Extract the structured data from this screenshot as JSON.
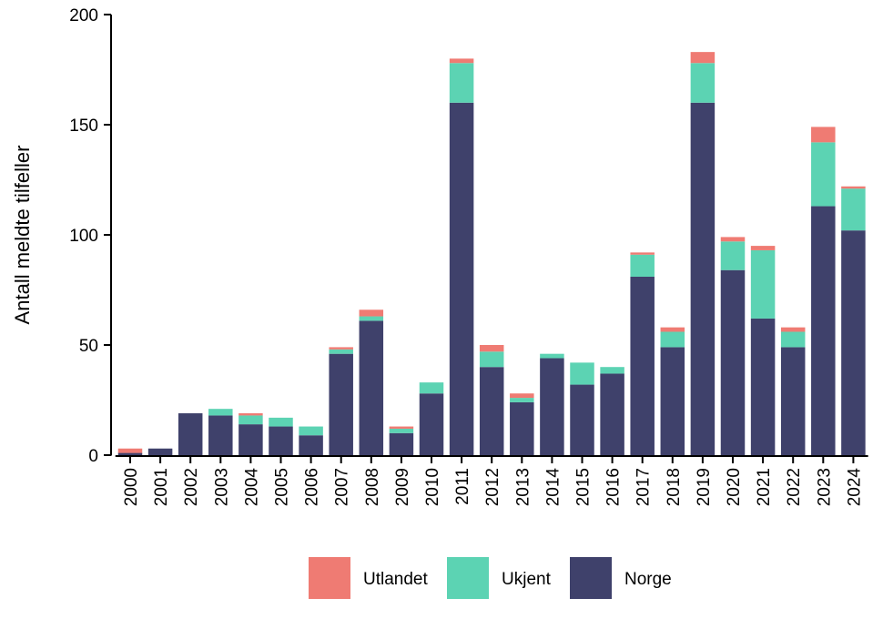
{
  "chart_data": {
    "type": "bar",
    "stacked": true,
    "title": "",
    "xlabel": "",
    "ylabel": "Antall meldte tilfeller",
    "ylim": [
      0,
      200
    ],
    "yticks": [
      0,
      50,
      100,
      150,
      200
    ],
    "categories": [
      "2000",
      "2001",
      "2002",
      "2003",
      "2004",
      "2005",
      "2006",
      "2007",
      "2008",
      "2009",
      "2010",
      "2011",
      "2012",
      "2013",
      "2014",
      "2015",
      "2016",
      "2017",
      "2018",
      "2019",
      "2020",
      "2021",
      "2022",
      "2023",
      "2024"
    ],
    "series": [
      {
        "name": "Norge",
        "color": "#3f416b",
        "values": [
          1,
          3,
          19,
          18,
          14,
          13,
          9,
          46,
          61,
          10,
          28,
          160,
          40,
          24,
          44,
          32,
          37,
          81,
          49,
          160,
          84,
          62,
          49,
          113,
          102
        ]
      },
      {
        "name": "Ukjent",
        "color": "#5cd3b3",
        "values": [
          0,
          0,
          0,
          3,
          4,
          4,
          4,
          2,
          2,
          2,
          5,
          18,
          7,
          2,
          2,
          10,
          3,
          10,
          7,
          18,
          13,
          31,
          7,
          29,
          19
        ]
      },
      {
        "name": "Utlandet",
        "color": "#ef7b73",
        "values": [
          2,
          0,
          0,
          0,
          1,
          0,
          0,
          1,
          3,
          1,
          0,
          2,
          3,
          2,
          0,
          0,
          0,
          1,
          2,
          5,
          2,
          2,
          2,
          7,
          1
        ]
      }
    ],
    "legend": {
      "placement": "bottom-center",
      "order": [
        "Utlandet",
        "Ukjent",
        "Norge"
      ]
    }
  }
}
